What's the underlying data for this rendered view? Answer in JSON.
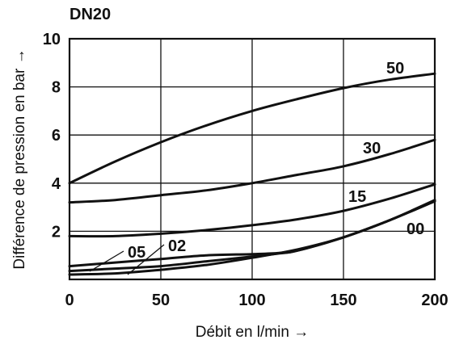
{
  "chart_data": {
    "type": "line",
    "title": "DN20",
    "xlabel": "Débit en l/min →",
    "ylabel": "Différence de pression en bar →",
    "xlim": [
      0,
      200
    ],
    "ylim": [
      0,
      10
    ],
    "x_ticks": [
      "0",
      "50",
      "100",
      "150",
      "200"
    ],
    "y_ticks": [
      "2",
      "4",
      "6",
      "8",
      "10"
    ],
    "grid": true,
    "series": [
      {
        "name": "50",
        "x": [
          0,
          25,
          50,
          75,
          100,
          125,
          150,
          175,
          200
        ],
        "values": [
          4.0,
          4.9,
          5.7,
          6.4,
          7.0,
          7.5,
          7.95,
          8.3,
          8.55
        ]
      },
      {
        "name": "30",
        "x": [
          0,
          25,
          50,
          75,
          100,
          125,
          150,
          175,
          200
        ],
        "values": [
          3.2,
          3.3,
          3.5,
          3.7,
          4.0,
          4.35,
          4.7,
          5.2,
          5.8
        ]
      },
      {
        "name": "15",
        "x": [
          0,
          25,
          50,
          75,
          100,
          125,
          150,
          175,
          200
        ],
        "values": [
          1.8,
          1.8,
          1.9,
          2.05,
          2.25,
          2.5,
          2.85,
          3.35,
          3.95
        ]
      },
      {
        "name": "05",
        "x": [
          0,
          25,
          50,
          75,
          100,
          115,
          125,
          150,
          175,
          200
        ],
        "values": [
          0.55,
          0.7,
          0.85,
          1.0,
          1.05,
          1.1,
          1.2,
          1.75,
          2.45,
          3.25
        ]
      },
      {
        "name": "02",
        "x": [
          0,
          25,
          50,
          75,
          100,
          115,
          125,
          150,
          175,
          200
        ],
        "values": [
          0.35,
          0.45,
          0.55,
          0.75,
          0.95,
          1.08,
          1.2,
          1.75,
          2.45,
          3.25
        ]
      },
      {
        "name": "00",
        "x": [
          0,
          25,
          50,
          75,
          100,
          125,
          150,
          175,
          200
        ],
        "values": [
          0.2,
          0.25,
          0.4,
          0.6,
          0.9,
          1.25,
          1.75,
          2.45,
          3.3
        ]
      }
    ]
  }
}
